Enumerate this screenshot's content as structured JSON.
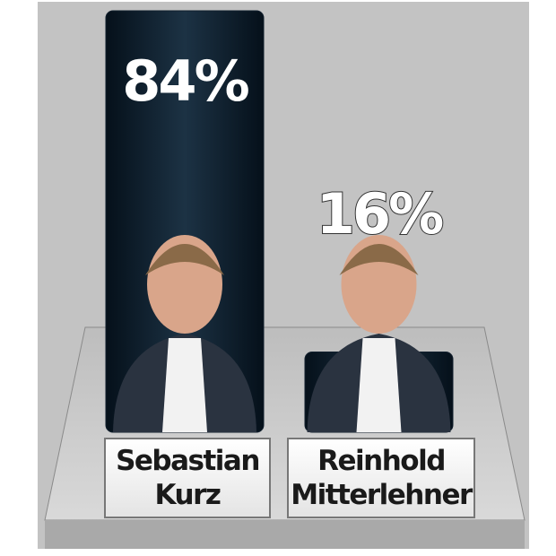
{
  "chart_data": {
    "type": "bar",
    "categories": [
      "Sebastian Kurz",
      "Reinhold Mitterlehner"
    ],
    "values": [
      84,
      16
    ],
    "value_labels": [
      "84%",
      "16%"
    ],
    "color": "#12202e"
  }
}
